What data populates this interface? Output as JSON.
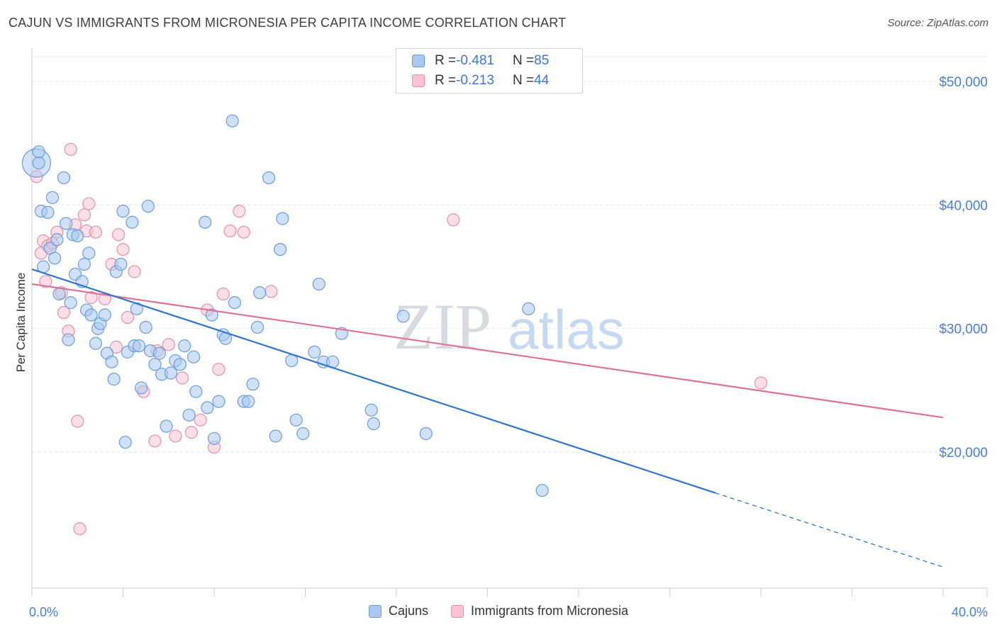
{
  "title": "CAJUN VS IMMIGRANTS FROM MICRONESIA PER CAPITA INCOME CORRELATION CHART",
  "source": "Source: ZipAtlas.com",
  "watermark": {
    "zip": "ZIP",
    "atlas": "atlas"
  },
  "legend": {
    "rows": [
      {
        "r_label": "R = ",
        "r_value": "-0.481",
        "n_label": "N = ",
        "n_value": "85"
      },
      {
        "r_label": "R = ",
        "r_value": "-0.213",
        "n_label": "N = ",
        "n_value": "44"
      }
    ]
  },
  "colors": {
    "cajun_fill": "#aac8f0",
    "cajun_stroke": "#6a9de0",
    "cajun_line": "#2f74d0",
    "micro_fill": "#f8c4d4",
    "micro_stroke": "#e890ad",
    "micro_line": "#e0709a",
    "axis_label": "#4a7fd1",
    "grid": "#dde3ea"
  },
  "chart_data": {
    "type": "scatter",
    "ylabel": "Per Capita Income",
    "x_tick_labels": [
      "0.0%",
      "40.0%"
    ],
    "y_tick_labels": [
      "$20,000",
      "$30,000",
      "$40,000",
      "$50,000"
    ],
    "y_ticks": [
      20000,
      30000,
      40000,
      50000
    ],
    "xlim": [
      0,
      40
    ],
    "ylim": [
      9000,
      52000
    ],
    "series": [
      {
        "name": "Cajuns",
        "r": -0.481,
        "n": 85,
        "trend": {
          "x0": 0,
          "y0": 34800,
          "x1": 30,
          "y1": 16700,
          "dash_to_x": 40,
          "dash_to_y": 10700
        },
        "points": [
          [
            0.3,
            43400
          ],
          [
            0.3,
            44300
          ],
          [
            0.4,
            39500
          ],
          [
            0.5,
            35000
          ],
          [
            0.7,
            39400
          ],
          [
            0.8,
            36500
          ],
          [
            0.9,
            40600
          ],
          [
            1.0,
            35700
          ],
          [
            1.1,
            37200
          ],
          [
            1.2,
            32800
          ],
          [
            1.4,
            42200
          ],
          [
            1.5,
            38500
          ],
          [
            1.6,
            29100
          ],
          [
            1.7,
            32100
          ],
          [
            1.8,
            37600
          ],
          [
            1.9,
            34400
          ],
          [
            2.0,
            37500
          ],
          [
            2.2,
            33800
          ],
          [
            2.3,
            35200
          ],
          [
            2.4,
            31500
          ],
          [
            2.5,
            36100
          ],
          [
            2.6,
            31100
          ],
          [
            2.8,
            28800
          ],
          [
            2.9,
            30000
          ],
          [
            3.0,
            30400
          ],
          [
            3.2,
            31100
          ],
          [
            3.3,
            28000
          ],
          [
            3.5,
            27300
          ],
          [
            3.6,
            25900
          ],
          [
            3.7,
            34600
          ],
          [
            3.9,
            35200
          ],
          [
            4.0,
            39500
          ],
          [
            4.1,
            20800
          ],
          [
            4.2,
            28100
          ],
          [
            4.4,
            38600
          ],
          [
            4.5,
            28600
          ],
          [
            4.6,
            31600
          ],
          [
            4.7,
            28600
          ],
          [
            4.8,
            25200
          ],
          [
            5.0,
            30100
          ],
          [
            5.1,
            39900
          ],
          [
            5.2,
            28200
          ],
          [
            5.4,
            27100
          ],
          [
            5.6,
            28000
          ],
          [
            5.7,
            26300
          ],
          [
            5.9,
            22100
          ],
          [
            6.1,
            26400
          ],
          [
            6.3,
            27400
          ],
          [
            6.5,
            27100
          ],
          [
            6.7,
            28600
          ],
          [
            6.9,
            23000
          ],
          [
            7.1,
            27700
          ],
          [
            7.2,
            24900
          ],
          [
            7.6,
            38600
          ],
          [
            7.7,
            23600
          ],
          [
            7.9,
            31100
          ],
          [
            8.0,
            21100
          ],
          [
            8.2,
            24100
          ],
          [
            8.4,
            29500
          ],
          [
            8.5,
            29200
          ],
          [
            8.8,
            46800
          ],
          [
            8.9,
            32100
          ],
          [
            9.3,
            24100
          ],
          [
            9.5,
            24100
          ],
          [
            9.7,
            25500
          ],
          [
            9.9,
            30100
          ],
          [
            10.0,
            32900
          ],
          [
            10.4,
            42200
          ],
          [
            10.7,
            21300
          ],
          [
            10.9,
            36400
          ],
          [
            11.0,
            38900
          ],
          [
            11.4,
            27400
          ],
          [
            11.6,
            22600
          ],
          [
            11.9,
            21500
          ],
          [
            12.4,
            28100
          ],
          [
            12.6,
            33600
          ],
          [
            12.8,
            27300
          ],
          [
            13.2,
            27300
          ],
          [
            13.6,
            29600
          ],
          [
            14.9,
            23400
          ],
          [
            15.0,
            22300
          ],
          [
            16.3,
            31000
          ],
          [
            17.3,
            21500
          ],
          [
            21.8,
            31600
          ],
          [
            22.4,
            16900
          ]
        ],
        "big_points": [
          [
            0.2,
            43400
          ]
        ]
      },
      {
        "name": "Immigrants from Micronesia",
        "r": -0.213,
        "n": 44,
        "trend": {
          "x0": 0,
          "y0": 33600,
          "x1": 40,
          "y1": 22800
        },
        "points": [
          [
            0.2,
            42300
          ],
          [
            0.4,
            36100
          ],
          [
            0.5,
            37100
          ],
          [
            0.6,
            33800
          ],
          [
            0.7,
            36700
          ],
          [
            0.9,
            36900
          ],
          [
            1.1,
            37800
          ],
          [
            1.3,
            32900
          ],
          [
            1.4,
            31300
          ],
          [
            1.6,
            29800
          ],
          [
            1.7,
            44500
          ],
          [
            1.9,
            38400
          ],
          [
            2.0,
            22500
          ],
          [
            2.1,
            13800
          ],
          [
            2.3,
            39200
          ],
          [
            2.4,
            37900
          ],
          [
            2.5,
            40100
          ],
          [
            2.6,
            32500
          ],
          [
            2.8,
            37800
          ],
          [
            3.2,
            32400
          ],
          [
            3.5,
            35200
          ],
          [
            3.7,
            28500
          ],
          [
            3.8,
            37600
          ],
          [
            4.0,
            36400
          ],
          [
            4.2,
            30900
          ],
          [
            4.5,
            34600
          ],
          [
            4.9,
            24900
          ],
          [
            5.4,
            20900
          ],
          [
            5.5,
            28200
          ],
          [
            6.0,
            28700
          ],
          [
            6.3,
            21300
          ],
          [
            6.6,
            26000
          ],
          [
            7.0,
            21600
          ],
          [
            7.4,
            22600
          ],
          [
            7.7,
            31500
          ],
          [
            8.0,
            20400
          ],
          [
            8.2,
            26700
          ],
          [
            8.4,
            32800
          ],
          [
            8.7,
            37900
          ],
          [
            9.1,
            39500
          ],
          [
            9.3,
            37800
          ],
          [
            10.5,
            33000
          ],
          [
            18.5,
            38800
          ],
          [
            32.0,
            25600
          ]
        ]
      }
    ]
  }
}
